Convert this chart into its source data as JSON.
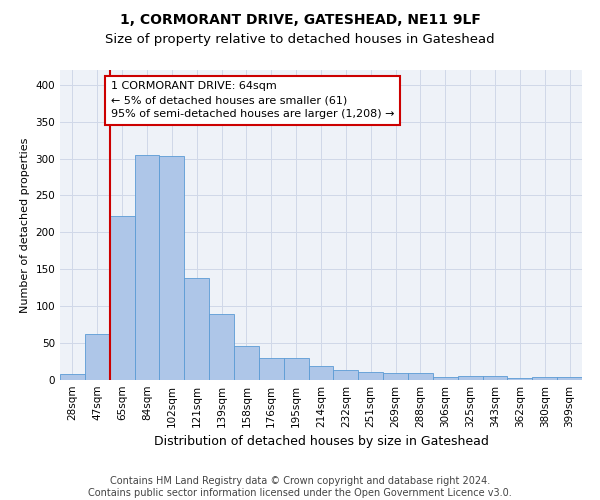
{
  "title": "1, CORMORANT DRIVE, GATESHEAD, NE11 9LF",
  "subtitle": "Size of property relative to detached houses in Gateshead",
  "xlabel": "Distribution of detached houses by size in Gateshead",
  "ylabel": "Number of detached properties",
  "bar_values": [
    8,
    63,
    222,
    305,
    303,
    138,
    90,
    46,
    30,
    30,
    19,
    14,
    11,
    10,
    10,
    4,
    5,
    5,
    3,
    4,
    4
  ],
  "bar_labels": [
    "28sqm",
    "47sqm",
    "65sqm",
    "84sqm",
    "102sqm",
    "121sqm",
    "139sqm",
    "158sqm",
    "176sqm",
    "195sqm",
    "214sqm",
    "232sqm",
    "251sqm",
    "269sqm",
    "288sqm",
    "306sqm",
    "325sqm",
    "343sqm",
    "362sqm",
    "380sqm",
    "399sqm"
  ],
  "bar_color": "#aec6e8",
  "bar_edge_color": "#5b9bd5",
  "highlight_line_color": "#cc0000",
  "annotation_text": "1 CORMORANT DRIVE: 64sqm\n← 5% of detached houses are smaller (61)\n95% of semi-detached houses are larger (1,208) →",
  "annotation_box_color": "#ffffff",
  "annotation_box_edge_color": "#cc0000",
  "ylim": [
    0,
    420
  ],
  "yticks": [
    0,
    50,
    100,
    150,
    200,
    250,
    300,
    350,
    400
  ],
  "grid_color": "#d0d8e8",
  "background_color": "#eef2f8",
  "footer_text": "Contains HM Land Registry data © Crown copyright and database right 2024.\nContains public sector information licensed under the Open Government Licence v3.0.",
  "title_fontsize": 10,
  "subtitle_fontsize": 9.5,
  "xlabel_fontsize": 9,
  "ylabel_fontsize": 8,
  "footer_fontsize": 7,
  "annotation_fontsize": 8,
  "tick_fontsize": 7.5
}
